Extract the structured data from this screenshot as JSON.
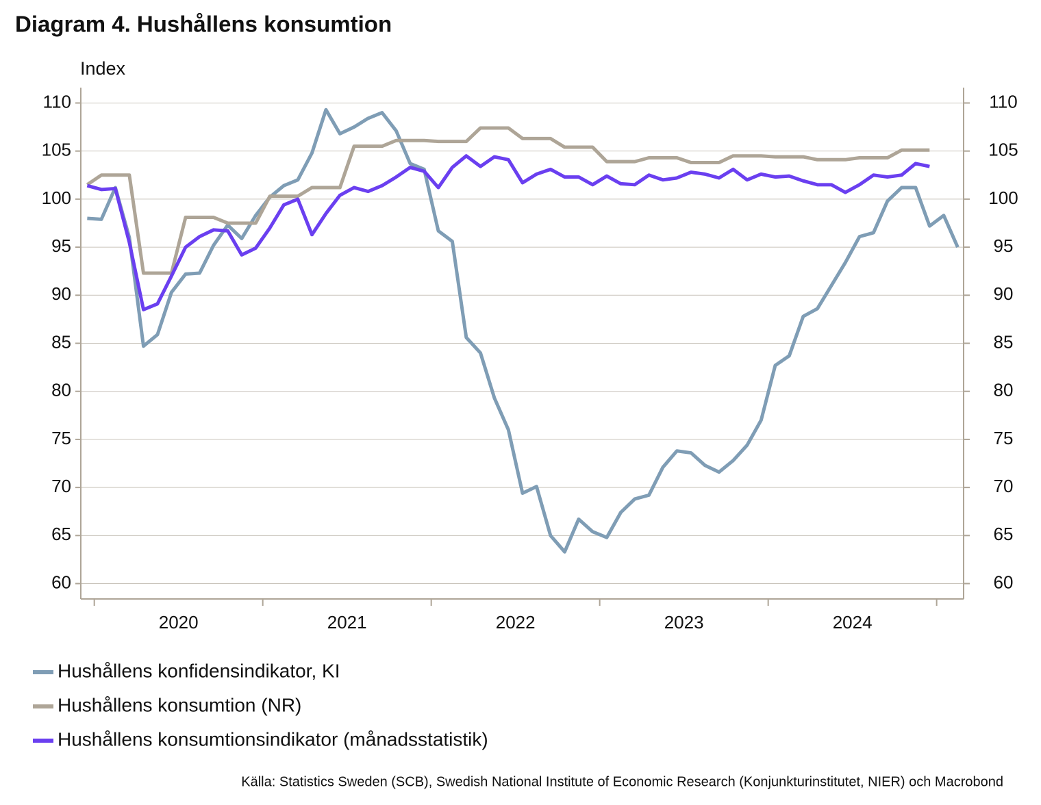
{
  "chart_data": {
    "type": "line",
    "title": "Diagram 4. Hushållens konsumtion",
    "y_label": "Index",
    "source": "Källa: Statistics Sweden (SCB), Swedish National Institute of Economic Research (Konjunkturinstitutet, NIER)  och Macrobond",
    "x": [
      2019.958,
      2020.042,
      2020.125,
      2020.208,
      2020.292,
      2020.375,
      2020.458,
      2020.542,
      2020.625,
      2020.708,
      2020.792,
      2020.875,
      2020.958,
      2021.042,
      2021.125,
      2021.208,
      2021.292,
      2021.375,
      2021.458,
      2021.542,
      2021.625,
      2021.708,
      2021.792,
      2021.875,
      2021.958,
      2022.042,
      2022.125,
      2022.208,
      2022.292,
      2022.375,
      2022.458,
      2022.542,
      2022.625,
      2022.708,
      2022.792,
      2022.875,
      2022.958,
      2023.042,
      2023.125,
      2023.208,
      2023.292,
      2023.375,
      2023.458,
      2023.542,
      2023.625,
      2023.708,
      2023.792,
      2023.875,
      2023.958,
      2024.042,
      2024.125,
      2024.208,
      2024.292,
      2024.375,
      2024.458,
      2024.542,
      2024.625,
      2024.708,
      2024.792,
      2024.875,
      2024.958,
      2025.042,
      2025.125
    ],
    "series": [
      {
        "name": "Hushållens konfidensindikator, KI",
        "color": "#7f9db5",
        "values": [
          98.0,
          97.9,
          101.2,
          96.0,
          84.7,
          85.9,
          90.3,
          92.2,
          92.3,
          95.2,
          97.3,
          95.9,
          98.3,
          100.2,
          101.4,
          102.0,
          104.8,
          109.3,
          106.8,
          107.5,
          108.4,
          109.0,
          107.1,
          103.7,
          103.1,
          96.7,
          95.6,
          85.6,
          84.0,
          79.3,
          76.0,
          69.4,
          70.1,
          65.0,
          63.3,
          66.7,
          65.4,
          64.8,
          67.4,
          68.8,
          69.2,
          72.1,
          73.8,
          73.6,
          72.3,
          71.6,
          72.8,
          74.4,
          77.0,
          82.7,
          83.7,
          87.8,
          88.6,
          91.0,
          93.4,
          96.1,
          96.5,
          99.8,
          101.2,
          101.2,
          97.2,
          98.3,
          95.0
        ]
      },
      {
        "name": "Hushållens konsumtion (NR)",
        "color": "#aea597",
        "values": [
          101.5,
          102.5,
          102.5,
          102.5,
          92.3,
          92.3,
          92.3,
          98.1,
          98.1,
          98.1,
          97.5,
          97.5,
          97.5,
          100.3,
          100.3,
          100.3,
          101.2,
          101.2,
          101.2,
          105.5,
          105.5,
          105.5,
          106.1,
          106.1,
          106.1,
          106.0,
          106.0,
          106.0,
          107.4,
          107.4,
          107.4,
          106.3,
          106.3,
          106.3,
          105.4,
          105.4,
          105.4,
          103.9,
          103.9,
          103.9,
          104.3,
          104.3,
          104.3,
          103.8,
          103.8,
          103.8,
          104.5,
          104.5,
          104.5,
          104.4,
          104.4,
          104.4,
          104.1,
          104.1,
          104.1,
          104.3,
          104.3,
          104.3,
          105.1,
          105.1,
          105.1,
          null,
          null
        ]
      },
      {
        "name": "Hushållens konsumtionsindikator (månadsstatistik)",
        "color": "#6a3ff0",
        "values": [
          101.4,
          101.0,
          101.1,
          95.5,
          88.5,
          89.1,
          92.0,
          95.0,
          96.1,
          96.8,
          96.7,
          94.2,
          94.9,
          97.0,
          99.4,
          100.0,
          96.3,
          98.5,
          100.4,
          101.2,
          100.8,
          101.4,
          102.3,
          103.3,
          102.9,
          101.2,
          103.3,
          104.5,
          103.4,
          104.4,
          104.1,
          101.7,
          102.6,
          103.1,
          102.3,
          102.3,
          101.5,
          102.4,
          101.6,
          101.5,
          102.5,
          102.0,
          102.2,
          102.8,
          102.6,
          102.2,
          103.1,
          102.0,
          102.6,
          102.3,
          102.4,
          101.9,
          101.5,
          101.5,
          100.7,
          101.5,
          102.5,
          102.3,
          102.5,
          103.7,
          103.4,
          null,
          null
        ]
      }
    ],
    "xlim": [
      2019.92,
      2025.16
    ],
    "xtick_marks": [
      2020,
      2021,
      2022,
      2023,
      2024,
      2025
    ],
    "xticks": [
      {
        "value": 2020.5,
        "label": "2020"
      },
      {
        "value": 2021.5,
        "label": "2021"
      },
      {
        "value": 2022.5,
        "label": "2022"
      },
      {
        "value": 2023.5,
        "label": "2023"
      },
      {
        "value": 2024.5,
        "label": "2024"
      }
    ],
    "ylim": [
      58.4,
      111.6
    ],
    "yticks": [
      60,
      65,
      70,
      75,
      80,
      85,
      90,
      95,
      100,
      105,
      110
    ],
    "y2lim": [
      58.4,
      111.6
    ],
    "y2ticks": [
      60,
      65,
      70,
      75,
      80,
      85,
      90,
      95,
      100,
      105,
      110
    ],
    "grid": true
  }
}
